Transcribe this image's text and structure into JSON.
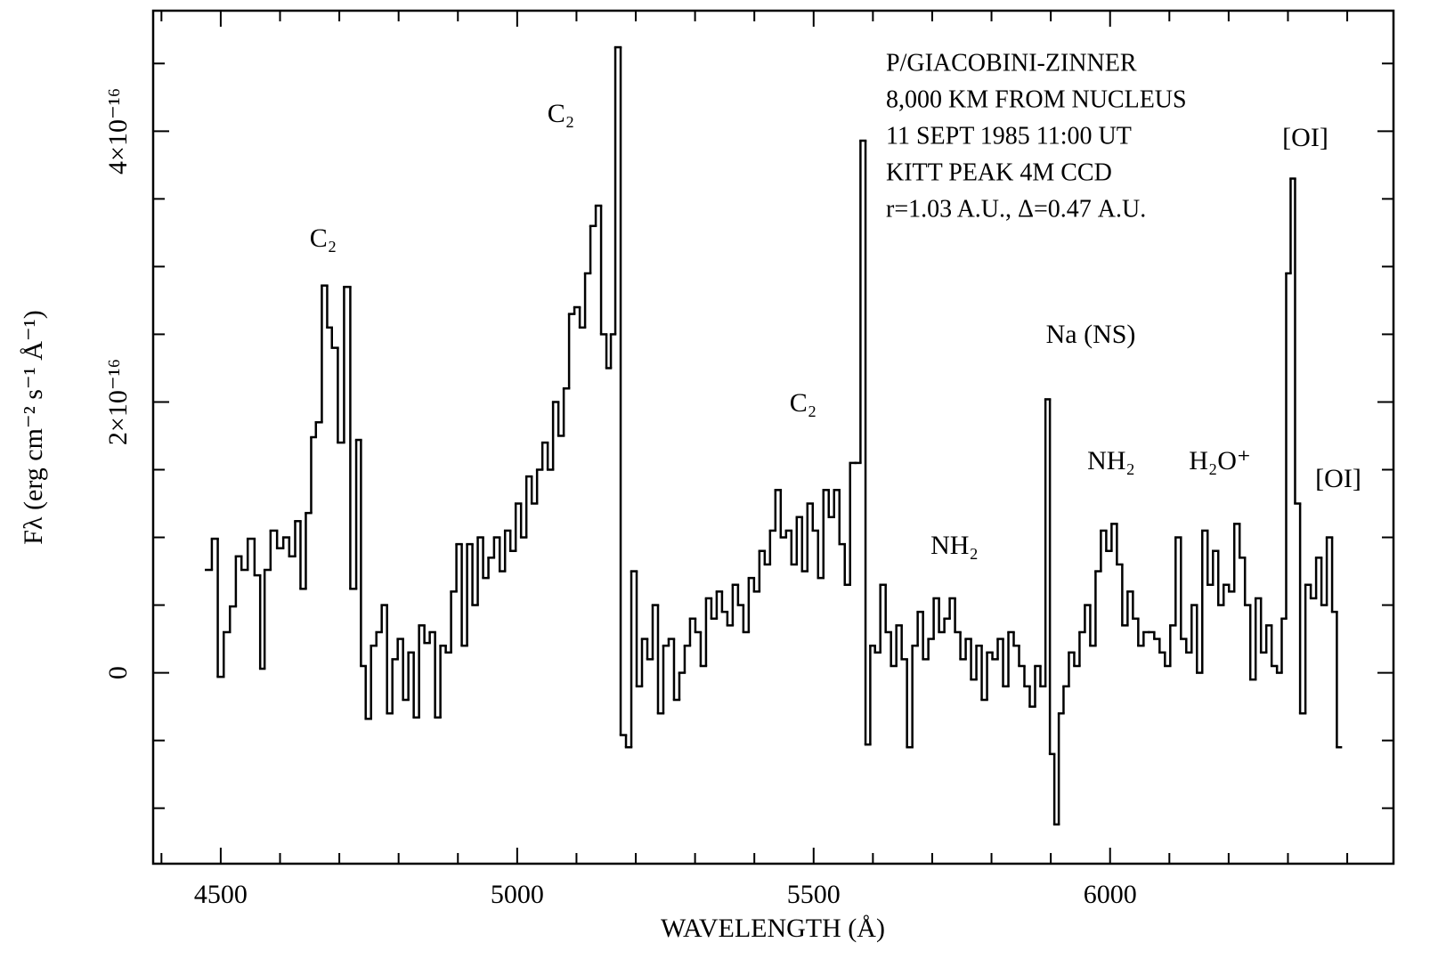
{
  "chart_data": {
    "type": "step",
    "xlabel": "WAVELENGTH (Å)",
    "ylabel": "Fλ (erg cm⁻² s⁻¹ Å⁻¹)",
    "info": [
      "P/GIACOBINI-ZINNER",
      "8,000 KM FROM NUCLEUS",
      "11 SEPT 1985 11:00 UT",
      "KITT PEAK 4M CCD",
      "r=1.03 A.U., Δ=0.47 A.U."
    ],
    "annotations": [
      "C₂",
      "C₂",
      "C₂",
      "Na (NS)",
      "[OI]",
      "NH₂",
      "NH₂",
      "H₂O⁺",
      "[OI]"
    ],
    "color": "#000000",
    "xlim": [
      4386,
      6478
    ],
    "ylim": [
      -1.41e-16,
      4.89e-16
    ],
    "xticks": [
      4500,
      5000,
      5500,
      6000
    ],
    "xminorticks": [
      4400,
      4600,
      4700,
      4800,
      4900,
      5100,
      5200,
      5300,
      5400,
      5600,
      5700,
      5800,
      5900,
      6100,
      6200,
      6300,
      6400
    ],
    "yticks": [
      0,
      {
        "value": 2e-16,
        "label": "2×10⁻¹⁶"
      },
      {
        "value": 4e-16,
        "label": "4×10⁻¹⁶"
      }
    ],
    "yminorticks": [
      -1e-16,
      -5e-17,
      5e-17,
      1e-16,
      1.5e-16,
      2.5e-16,
      3e-16,
      3.5e-16,
      4.5e-16
    ],
    "x": [
      4480,
      4490,
      4500,
      4510,
      4521,
      4530,
      4540,
      4551,
      4563,
      4570,
      4578,
      4590,
      4600,
      4611,
      4620,
      4631,
      4638,
      4649,
      4656,
      4665,
      4676,
      4683,
      4692,
      4703,
      4713,
      4724,
      4733,
      4740,
      4749,
      4758,
      4767,
      4776,
      4785,
      4794,
      4803,
      4812,
      4821,
      4830,
      4839,
      4848,
      4857,
      4866,
      4875,
      4884,
      4893,
      4902,
      4911,
      4920,
      4929,
      4938,
      4947,
      4956,
      4966,
      4975,
      4984,
      4993,
      5002,
      5011,
      5020,
      5029,
      5038,
      5047,
      5056,
      5065,
      5074,
      5083,
      5092,
      5101,
      5110,
      5119,
      5128,
      5137,
      5146,
      5155,
      5161,
      5170,
      5179,
      5188,
      5197,
      5206,
      5215,
      5224,
      5233,
      5242,
      5251,
      5260,
      5269,
      5278,
      5287,
      5296,
      5305,
      5314,
      5323,
      5332,
      5341,
      5350,
      5359,
      5368,
      5377,
      5386,
      5395,
      5404,
      5413,
      5422,
      5431,
      5440,
      5449,
      5458,
      5467,
      5476,
      5485,
      5494,
      5503,
      5512,
      5521,
      5530,
      5539,
      5548,
      5557,
      5566,
      5575,
      5583,
      5592,
      5599,
      5608,
      5617,
      5626,
      5635,
      5644,
      5653,
      5662,
      5671,
      5680,
      5689,
      5698,
      5707,
      5716,
      5725,
      5734,
      5743,
      5752,
      5761,
      5770,
      5779,
      5788,
      5797,
      5806,
      5815,
      5824,
      5833,
      5842,
      5851,
      5860,
      5869,
      5878,
      5887,
      5895,
      5902,
      5910,
      5917,
      5926,
      5935,
      5944,
      5953,
      5962,
      5971,
      5980,
      5989,
      5998,
      6007,
      6016,
      6025,
      6034,
      6043,
      6052,
      6061,
      6070,
      6079,
      6088,
      6097,
      6106,
      6115,
      6124,
      6133,
      6142,
      6151,
      6160,
      6169,
      6178,
      6187,
      6196,
      6205,
      6214,
      6223,
      6232,
      6241,
      6250,
      6259,
      6268,
      6277,
      6286,
      6293,
      6301,
      6308,
      6316,
      6325,
      6334,
      6343,
      6352,
      6361,
      6370,
      6379,
      6386
    ],
    "values": [
      7.6e-17,
      9.9e-17,
      -3e-18,
      3e-17,
      4.9e-17,
      8.6e-17,
      7.6e-17,
      9.9e-17,
      7.2e-17,
      3e-18,
      7.6e-17,
      1.05e-16,
      9.2e-17,
      1e-16,
      8.6e-17,
      1.12e-16,
      6.2e-17,
      1.18e-16,
      1.74e-16,
      1.85e-16,
      2.86e-16,
      2.55e-16,
      2.4e-16,
      1.7e-16,
      2.85e-16,
      6.2e-17,
      1.72e-16,
      5e-18,
      -3.4e-17,
      2e-17,
      3e-17,
      5e-17,
      -3e-17,
      1e-17,
      2.5e-17,
      -2e-17,
      1.5e-17,
      -3.3e-17,
      3.5e-17,
      2.2e-17,
      3e-17,
      -3.3e-17,
      2e-17,
      1.5e-17,
      6e-17,
      9.5e-17,
      2e-17,
      9.5e-17,
      5e-17,
      1e-16,
      7e-17,
      8.5e-17,
      1e-16,
      7.5e-17,
      1.05e-16,
      9e-17,
      1.25e-16,
      1e-16,
      1.45e-16,
      1.25e-16,
      1.5e-16,
      1.7e-16,
      1.5e-16,
      2e-16,
      1.75e-16,
      2.1e-16,
      2.65e-16,
      2.7e-16,
      2.55e-16,
      2.95e-16,
      3.3e-16,
      3.45e-16,
      2.5e-16,
      2.25e-16,
      2.5e-16,
      4.62e-16,
      -4.6e-17,
      -5.5e-17,
      7.5e-17,
      -1e-17,
      2.5e-17,
      1e-17,
      5e-17,
      -3e-17,
      2e-17,
      2.5e-17,
      -2e-17,
      0,
      2e-17,
      4e-17,
      3e-17,
      5e-18,
      5.5e-17,
      4e-17,
      6e-17,
      4.5e-17,
      3.5e-17,
      6.5e-17,
      5e-17,
      3e-17,
      7e-17,
      6e-17,
      9e-17,
      8e-17,
      1.05e-16,
      1.35e-16,
      1e-16,
      1.05e-16,
      8e-17,
      1.15e-16,
      7.5e-17,
      1.25e-16,
      1.05e-16,
      7e-17,
      1.35e-16,
      1.15e-16,
      1.35e-16,
      9.5e-17,
      6.5e-17,
      1.55e-16,
      1.55e-16,
      3.93e-16,
      -5.3e-17,
      2e-17,
      1.5e-17,
      6.5e-17,
      3e-17,
      5e-18,
      3.5e-17,
      1e-17,
      -5.5e-17,
      2e-17,
      4.5e-17,
      1e-17,
      2.5e-17,
      5.5e-17,
      3e-17,
      4e-17,
      5.5e-17,
      3e-17,
      1e-17,
      2.5e-17,
      -5e-18,
      2e-17,
      -2e-17,
      1.5e-17,
      1e-17,
      2.5e-17,
      -1e-17,
      3e-17,
      2e-17,
      5e-18,
      -1e-17,
      -2.5e-17,
      5e-18,
      -1e-17,
      2.02e-16,
      -6e-17,
      -1.12e-16,
      -3e-17,
      -1e-17,
      1.5e-17,
      5e-18,
      3e-17,
      5e-17,
      2e-17,
      7.5e-17,
      1.05e-16,
      9e-17,
      1.1e-16,
      8e-17,
      3.5e-17,
      6e-17,
      4e-17,
      2e-17,
      3e-17,
      3e-17,
      2.5e-17,
      1.5e-17,
      5e-18,
      3.5e-17,
      1e-16,
      2.5e-17,
      1.5e-17,
      5e-17,
      0,
      1.05e-16,
      6.5e-17,
      9e-17,
      5e-17,
      6.5e-17,
      6e-17,
      1.1e-16,
      8.5e-17,
      5e-17,
      -5e-18,
      5.5e-17,
      1.5e-17,
      3.5e-17,
      5e-18,
      0,
      4e-17,
      2.95e-16,
      3.65e-16,
      1.25e-16,
      -3e-17,
      6.5e-17,
      5.5e-17,
      8.5e-17,
      5e-17,
      1e-16,
      4.5e-17,
      -5.5e-17
    ]
  }
}
